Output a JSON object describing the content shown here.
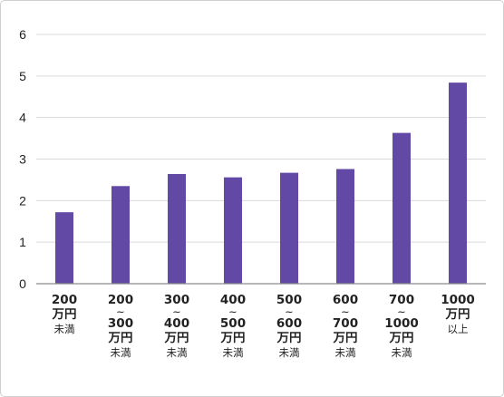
{
  "chart_data": {
    "type": "bar",
    "title": "",
    "xlabel": "",
    "ylabel": "",
    "ylim": [
      0,
      6
    ],
    "yticks": [
      0,
      1,
      2,
      3,
      4,
      5,
      6
    ],
    "grid": true,
    "bar_color": "#6349a6",
    "grid_color": "#d9d9d9",
    "axis_color": "#8c8c8c",
    "categories": [
      "200万円未満",
      "200~300万円未満",
      "300~400万円未満",
      "400~500万円未満",
      "500~600万円未満",
      "600~700万円未満",
      "700~1000万円未満",
      "1000万円以上"
    ],
    "category_label_lines": [
      [
        {
          "t": "200",
          "b": true
        },
        {
          "t": "万円",
          "b": true
        },
        {
          "t": "未満",
          "b": false
        }
      ],
      [
        {
          "t": "200",
          "b": true
        },
        {
          "t": "~",
          "b": false
        },
        {
          "t": "300",
          "b": true
        },
        {
          "t": "万円",
          "b": true
        },
        {
          "t": "未満",
          "b": false
        }
      ],
      [
        {
          "t": "300",
          "b": true
        },
        {
          "t": "~",
          "b": false
        },
        {
          "t": "400",
          "b": true
        },
        {
          "t": "万円",
          "b": true
        },
        {
          "t": "未満",
          "b": false
        }
      ],
      [
        {
          "t": "400",
          "b": true
        },
        {
          "t": "~",
          "b": false
        },
        {
          "t": "500",
          "b": true
        },
        {
          "t": "万円",
          "b": true
        },
        {
          "t": "未満",
          "b": false
        }
      ],
      [
        {
          "t": "500",
          "b": true
        },
        {
          "t": "~",
          "b": false
        },
        {
          "t": "600",
          "b": true
        },
        {
          "t": "万円",
          "b": true
        },
        {
          "t": "未満",
          "b": false
        }
      ],
      [
        {
          "t": "600",
          "b": true
        },
        {
          "t": "~",
          "b": false
        },
        {
          "t": "700",
          "b": true
        },
        {
          "t": "万円",
          "b": true
        },
        {
          "t": "未満",
          "b": false
        }
      ],
      [
        {
          "t": "700",
          "b": true
        },
        {
          "t": "~",
          "b": false
        },
        {
          "t": "1000",
          "b": true
        },
        {
          "t": "万円",
          "b": true
        },
        {
          "t": "未満",
          "b": false
        }
      ],
      [
        {
          "t": "1000",
          "b": true
        },
        {
          "t": "万円",
          "b": true
        },
        {
          "t": "以上",
          "b": false
        }
      ]
    ],
    "values": [
      1.72,
      2.35,
      2.64,
      2.56,
      2.67,
      2.76,
      3.63,
      4.84
    ]
  }
}
